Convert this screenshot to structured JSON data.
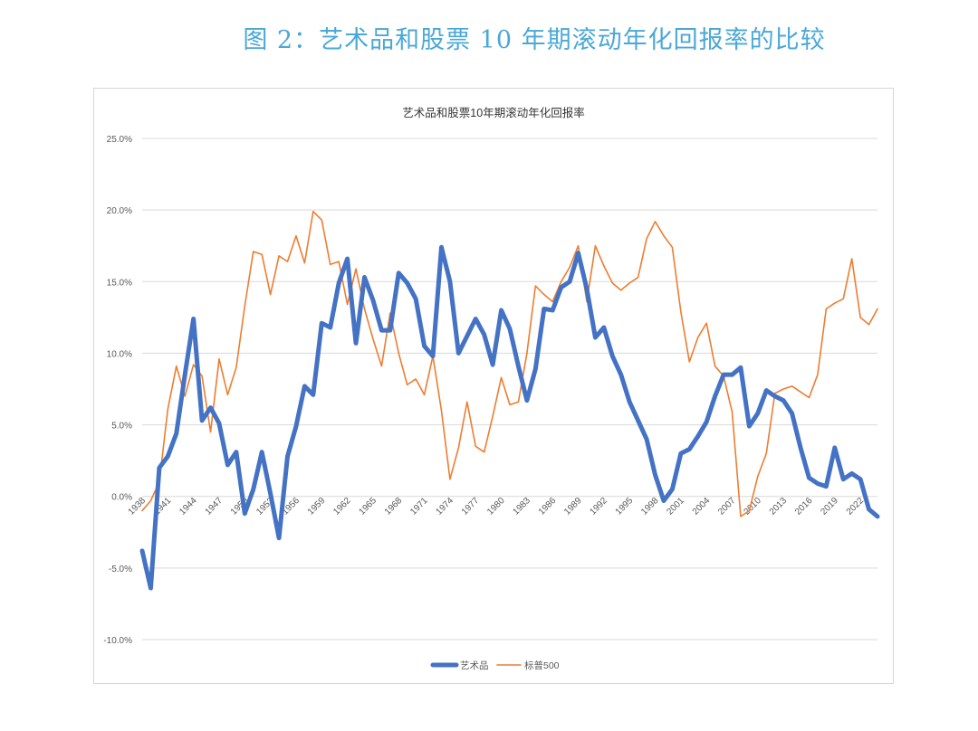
{
  "figure_caption": "图 2：艺术品和股票 10 年期滚动年化回报率的比较",
  "chart_data": {
    "type": "line",
    "title": "艺术品和股票10年期滚动年化回报率",
    "xlabel": "",
    "ylabel": "",
    "ylim": [
      -10,
      25
    ],
    "yticks": [
      -10,
      -5,
      0,
      5,
      10,
      15,
      20,
      25
    ],
    "ytick_labels": [
      "-10.0%",
      "-5.0%",
      "0.0%",
      "5.0%",
      "10.0%",
      "15.0%",
      "20.0%",
      "25.0%"
    ],
    "grid": true,
    "legend_position": "bottom",
    "x": [
      1938,
      1939,
      1940,
      1941,
      1942,
      1943,
      1944,
      1945,
      1946,
      1947,
      1948,
      1949,
      1950,
      1951,
      1952,
      1953,
      1954,
      1955,
      1956,
      1957,
      1958,
      1959,
      1960,
      1961,
      1962,
      1963,
      1964,
      1965,
      1966,
      1967,
      1968,
      1969,
      1970,
      1971,
      1972,
      1973,
      1974,
      1975,
      1976,
      1977,
      1978,
      1979,
      1980,
      1981,
      1982,
      1983,
      1984,
      1985,
      1986,
      1987,
      1988,
      1989,
      1990,
      1991,
      1992,
      1993,
      1994,
      1995,
      1996,
      1997,
      1998,
      1999,
      2000,
      2001,
      2002,
      2003,
      2004,
      2005,
      2006,
      2007,
      2008,
      2009,
      2010,
      2011,
      2012,
      2013,
      2014,
      2015,
      2016,
      2017,
      2018,
      2019,
      2020,
      2021,
      2022,
      2023,
      2024
    ],
    "x_tick_labels": [
      "1938",
      "1941",
      "1944",
      "1947",
      "1950",
      "1953",
      "1956",
      "1959",
      "1962",
      "1965",
      "1968",
      "1971",
      "1974",
      "1977",
      "1980",
      "1983",
      "1986",
      "1989",
      "1992",
      "1995",
      "1998",
      "2001",
      "2004",
      "2007",
      "2010",
      "2013",
      "2016",
      "2019",
      "2022"
    ],
    "series": [
      {
        "name": "艺术品",
        "color": "#4472C4",
        "values": [
          -3.8,
          -6.4,
          2.0,
          2.8,
          4.4,
          8.5,
          12.4,
          5.3,
          6.2,
          5.1,
          2.2,
          3.1,
          -1.2,
          0.5,
          3.1,
          0.2,
          -2.9,
          2.8,
          4.9,
          7.7,
          7.1,
          12.1,
          11.8,
          14.9,
          16.6,
          10.7,
          15.3,
          13.7,
          11.6,
          11.6,
          15.6,
          14.9,
          13.8,
          10.5,
          9.8,
          17.4,
          15.0,
          10.0,
          11.2,
          12.4,
          11.3,
          9.2,
          13.0,
          11.7,
          9.1,
          6.7,
          8.9,
          13.1,
          13.0,
          14.6,
          15.0,
          17.0,
          14.5,
          11.1,
          11.8,
          9.8,
          8.5,
          6.6,
          5.3,
          4.0,
          1.5,
          -0.3,
          0.5,
          3.0,
          3.3,
          4.2,
          5.2,
          7.0,
          8.5,
          8.5,
          9.0,
          4.9,
          5.8,
          7.4,
          7.0,
          6.7,
          5.8,
          3.4,
          1.3,
          0.9,
          0.7,
          3.4,
          1.2,
          1.6,
          1.2,
          -0.9,
          -1.4
        ]
      },
      {
        "name": "标普500",
        "color": "#ED7D31",
        "values": [
          -1.0,
          -0.3,
          1.0,
          6.1,
          9.1,
          7.0,
          9.2,
          8.4,
          4.5,
          9.6,
          7.1,
          9.0,
          13.3,
          17.1,
          16.9,
          14.1,
          16.8,
          16.4,
          18.2,
          16.3,
          19.9,
          19.3,
          16.2,
          16.4,
          13.4,
          15.9,
          13.1,
          11.0,
          9.1,
          12.8,
          10.0,
          7.8,
          8.2,
          7.1,
          9.8,
          6.0,
          1.2,
          3.4,
          6.6,
          3.5,
          3.1,
          5.6,
          8.3,
          6.4,
          6.6,
          10.0,
          14.7,
          14.1,
          13.6,
          15.0,
          16.0,
          17.5,
          13.6,
          17.5,
          16.1,
          14.9,
          14.4,
          14.9,
          15.3,
          18.0,
          19.2,
          18.2,
          17.4,
          12.9,
          9.4,
          11.1,
          12.1,
          9.1,
          8.4,
          5.9,
          -1.4,
          -1.0,
          1.4,
          3.0,
          7.2,
          7.5,
          7.7,
          7.3,
          6.9,
          8.5,
          13.1,
          13.5,
          13.8,
          16.6,
          12.5,
          12.0,
          13.1
        ]
      }
    ]
  }
}
